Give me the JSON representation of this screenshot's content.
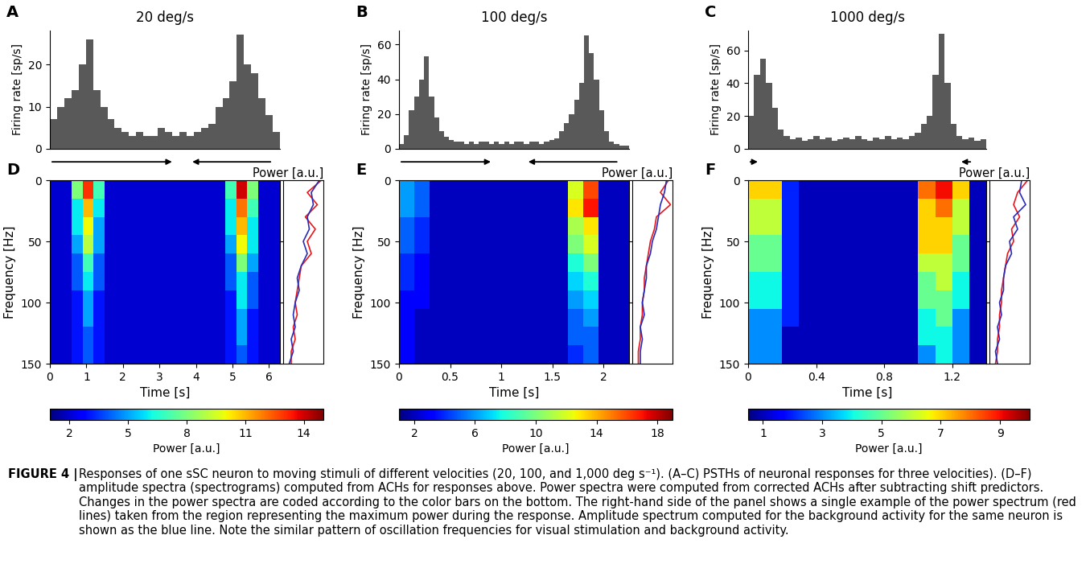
{
  "chart_data": [
    {
      "type": "histogram",
      "panel": "A",
      "title": "20 deg/s",
      "y_label": "Firing rate [sp/s]",
      "bins": [
        0,
        0.2,
        0.4,
        0.6,
        0.8,
        1,
        1.2,
        1.4,
        1.6,
        1.8,
        2,
        2.2,
        2.4,
        2.6,
        2.8,
        3,
        3.2,
        3.4,
        3.6,
        3.8,
        4,
        4.2,
        4.4,
        4.6,
        4.8,
        5,
        5.2,
        5.4,
        5.6,
        5.8,
        6,
        6.2,
        6.4
      ],
      "values": [
        7,
        10,
        12,
        14,
        20,
        26,
        14,
        10,
        7,
        5,
        4,
        3,
        4,
        3,
        3,
        5,
        4,
        3,
        4,
        3,
        4,
        5,
        6,
        10,
        12,
        16,
        27,
        20,
        18,
        12,
        8,
        4
      ],
      "color": "#595959",
      "xlim": [
        0,
        6.4
      ],
      "xticks": [],
      "ylim": [
        0,
        28
      ],
      "yticks": [
        0,
        10,
        20
      ],
      "tick_labels": "y",
      "stimulus_arrows": [
        {
          "start": 0,
          "end": 3.46
        },
        {
          "start": 6.2,
          "end": 3.9
        }
      ]
    },
    {
      "type": "histogram",
      "panel": "B",
      "title": "100 deg/s",
      "y_label": "Firing rate [sp/s]",
      "bins": [
        0,
        0.05,
        0.1,
        0.15,
        0.2,
        0.25,
        0.3,
        0.35,
        0.4,
        0.45,
        0.5,
        0.55,
        0.6,
        0.65,
        0.7,
        0.75,
        0.8,
        0.85,
        0.9,
        0.95,
        1,
        1.05,
        1.1,
        1.15,
        1.2,
        1.25,
        1.3,
        1.35,
        1.4,
        1.45,
        1.5,
        1.55,
        1.6,
        1.65,
        1.7,
        1.75,
        1.8,
        1.85,
        1.9,
        1.95,
        2,
        2.05,
        2.1,
        2.15,
        2.2,
        2.25,
        2.3
      ],
      "values": [
        3,
        8,
        22,
        30,
        40,
        53,
        30,
        18,
        10,
        7,
        5,
        4,
        4,
        3,
        4,
        3,
        4,
        4,
        3,
        4,
        3,
        4,
        3,
        4,
        4,
        3,
        4,
        4,
        3,
        4,
        5,
        6,
        10,
        15,
        20,
        28,
        38,
        65,
        55,
        40,
        22,
        10,
        4,
        3,
        2,
        2
      ],
      "color": "#595959",
      "xlim": [
        0,
        2.3
      ],
      "xticks": [],
      "ylim": [
        0,
        68
      ],
      "yticks": [
        0,
        20,
        40,
        60
      ],
      "tick_labels": "y",
      "stimulus_arrows": [
        {
          "start": 0,
          "end": 0.94
        },
        {
          "start": 2.2,
          "end": 1.27
        }
      ]
    },
    {
      "type": "histogram",
      "panel": "C",
      "title": "1000 deg/s",
      "y_label": "Firing rate [sp/s]",
      "bins": [
        0,
        0.035,
        0.07,
        0.105,
        0.14,
        0.175,
        0.21,
        0.245,
        0.28,
        0.315,
        0.35,
        0.385,
        0.42,
        0.455,
        0.49,
        0.525,
        0.56,
        0.595,
        0.63,
        0.665,
        0.7,
        0.735,
        0.77,
        0.805,
        0.84,
        0.875,
        0.91,
        0.945,
        0.98,
        1.015,
        1.05,
        1.085,
        1.12,
        1.155,
        1.19,
        1.225,
        1.26,
        1.295,
        1.33,
        1.365,
        1.4
      ],
      "values": [
        20,
        45,
        55,
        40,
        25,
        12,
        8,
        6,
        7,
        5,
        6,
        8,
        6,
        7,
        5,
        6,
        7,
        6,
        8,
        6,
        5,
        7,
        6,
        8,
        6,
        7,
        6,
        8,
        10,
        15,
        20,
        45,
        70,
        40,
        15,
        8,
        6,
        7,
        5,
        6
      ],
      "color": "#595959",
      "xlim": [
        0,
        1.4
      ],
      "xticks": [],
      "ylim": [
        0,
        72
      ],
      "yticks": [
        0,
        20,
        40,
        60
      ],
      "tick_labels": "y",
      "stimulus_arrows": [
        {
          "start": 0,
          "end": 0.07
        },
        {
          "start": 1.32,
          "end": 1.24
        }
      ]
    },
    {
      "type": "heatmap",
      "panel": "D",
      "x_label": "Time [s]",
      "y_label": "Frequency [Hz]",
      "time_edges": [
        0,
        0.3,
        0.6,
        0.9,
        1.2,
        1.5,
        1.8,
        2.1,
        2.4,
        2.7,
        3,
        3.3,
        3.6,
        3.9,
        4.2,
        4.5,
        4.8,
        5.1,
        5.4,
        5.7,
        6,
        6.3
      ],
      "freq_edges": [
        0,
        15,
        30,
        45,
        60,
        75,
        90,
        105,
        120,
        135,
        150
      ],
      "power": [
        [
          2,
          2,
          8,
          13,
          7,
          2,
          2,
          2,
          2,
          2,
          2,
          2,
          2,
          2,
          2,
          2,
          7,
          14,
          8,
          2,
          2
        ],
        [
          2,
          2,
          6,
          11,
          6,
          2,
          2,
          2,
          2,
          2,
          2,
          2,
          2,
          2,
          2,
          2,
          6,
          12,
          7,
          2,
          2
        ],
        [
          2,
          2,
          6,
          10,
          5,
          2,
          2,
          2,
          2,
          2,
          2,
          2,
          2,
          2,
          2,
          2,
          6,
          11,
          6,
          2,
          2
        ],
        [
          2,
          2,
          5,
          9,
          5,
          2,
          2,
          2,
          2,
          2,
          2,
          2,
          2,
          2,
          2,
          2,
          5,
          10,
          6,
          2,
          2
        ],
        [
          2,
          2,
          4,
          7,
          4,
          2,
          2,
          2,
          2,
          2,
          2,
          2,
          2,
          2,
          2,
          2,
          4,
          8,
          5,
          2,
          2
        ],
        [
          2,
          2,
          4,
          6,
          4,
          2,
          2,
          2,
          2,
          2,
          2,
          2,
          2,
          2,
          2,
          2,
          4,
          6,
          4,
          2,
          2
        ],
        [
          2,
          2,
          3,
          5,
          3,
          2,
          2,
          2,
          2,
          2,
          2,
          2,
          2,
          2,
          2,
          2,
          3,
          6,
          4,
          2,
          2
        ],
        [
          2,
          2,
          3,
          5,
          3,
          2,
          2,
          2,
          2,
          2,
          2,
          2,
          2,
          2,
          2,
          2,
          3,
          5,
          3,
          2,
          2
        ],
        [
          2,
          2,
          3,
          4,
          3,
          2,
          2,
          2,
          2,
          2,
          2,
          2,
          2,
          2,
          2,
          2,
          3,
          5,
          3,
          2,
          2
        ],
        [
          2,
          2,
          3,
          4,
          3,
          2,
          2,
          2,
          2,
          2,
          2,
          2,
          2,
          2,
          2,
          2,
          3,
          4,
          3,
          2,
          2
        ]
      ],
      "xlim": [
        0,
        6.3
      ],
      "xticks": [
        0,
        1,
        2,
        3,
        4,
        5,
        6
      ],
      "ylim": [
        150,
        0
      ],
      "yticks": [
        0,
        50,
        100,
        150
      ],
      "color_range": [
        1,
        15
      ],
      "colorbar_ticks": [
        2,
        5,
        8,
        11,
        14
      ],
      "colorbar_label": "Power [a.u.]"
    },
    {
      "type": "heatmap",
      "panel": "E",
      "x_label": "Time [s]",
      "y_label": "Frequency [Hz]",
      "time_edges": [
        0,
        0.15,
        0.3,
        0.45,
        0.6,
        0.75,
        0.9,
        1.05,
        1.2,
        1.35,
        1.5,
        1.65,
        1.8,
        1.95,
        2.1,
        2.25
      ],
      "freq_edges": [
        0,
        15,
        30,
        45,
        60,
        75,
        90,
        105,
        120,
        135,
        150
      ],
      "power": [
        [
          6,
          5,
          2,
          2,
          2,
          2,
          2,
          2,
          2,
          2,
          2,
          12,
          16,
          2,
          2
        ],
        [
          6,
          5,
          2,
          2,
          2,
          2,
          2,
          2,
          2,
          2,
          2,
          13,
          17,
          2,
          2
        ],
        [
          5,
          4,
          2,
          2,
          2,
          2,
          2,
          2,
          2,
          2,
          2,
          11,
          13,
          2,
          2
        ],
        [
          5,
          4,
          2,
          2,
          2,
          2,
          2,
          2,
          2,
          2,
          2,
          10,
          12,
          2,
          2
        ],
        [
          4,
          3,
          2,
          2,
          2,
          2,
          2,
          2,
          2,
          2,
          2,
          8,
          10,
          2,
          2
        ],
        [
          4,
          3,
          2,
          2,
          2,
          2,
          2,
          2,
          2,
          2,
          2,
          7,
          8,
          2,
          2
        ],
        [
          3,
          3,
          2,
          2,
          2,
          2,
          2,
          2,
          2,
          2,
          2,
          6,
          7,
          2,
          2
        ],
        [
          3,
          2,
          2,
          2,
          2,
          2,
          2,
          2,
          2,
          2,
          2,
          5,
          6,
          2,
          2
        ],
        [
          3,
          2,
          2,
          2,
          2,
          2,
          2,
          2,
          2,
          2,
          2,
          5,
          5,
          2,
          2
        ],
        [
          3,
          2,
          2,
          2,
          2,
          2,
          2,
          2,
          2,
          2,
          2,
          4,
          5,
          2,
          2
        ]
      ],
      "xlim": [
        0,
        2.25
      ],
      "xticks": [
        0,
        0.5,
        1,
        1.5,
        2
      ],
      "ylim": [
        150,
        0
      ],
      "yticks": [
        0,
        50,
        100,
        150
      ],
      "color_range": [
        1,
        19
      ],
      "colorbar_ticks": [
        2,
        6,
        10,
        14,
        18
      ],
      "colorbar_label": "Power [a.u.]"
    },
    {
      "type": "heatmap",
      "panel": "F",
      "x_label": "Time [s]",
      "y_label": "Frequency [Hz]",
      "time_edges": [
        0,
        0.1,
        0.2,
        0.3,
        0.4,
        0.5,
        0.6,
        0.7,
        0.8,
        0.9,
        1,
        1.1,
        1.2,
        1.3,
        1.4
      ],
      "freq_edges": [
        0,
        15,
        30,
        45,
        60,
        75,
        90,
        105,
        120,
        135,
        150
      ],
      "power": [
        [
          7,
          7,
          2,
          1,
          1,
          1,
          1,
          1,
          1,
          1,
          8,
          9,
          7,
          1
        ],
        [
          6,
          6,
          2,
          1,
          1,
          1,
          1,
          1,
          1,
          1,
          7,
          8,
          6,
          1
        ],
        [
          6,
          6,
          2,
          1,
          1,
          1,
          1,
          1,
          1,
          1,
          7,
          7,
          6,
          1
        ],
        [
          5,
          5,
          2,
          1,
          1,
          1,
          1,
          1,
          1,
          1,
          7,
          7,
          5,
          1
        ],
        [
          5,
          5,
          2,
          1,
          1,
          1,
          1,
          1,
          1,
          1,
          6,
          6,
          5,
          1
        ],
        [
          4,
          4,
          2,
          1,
          1,
          1,
          1,
          1,
          1,
          1,
          5,
          6,
          4,
          1
        ],
        [
          4,
          4,
          2,
          1,
          1,
          1,
          1,
          1,
          1,
          1,
          5,
          5,
          4,
          1
        ],
        [
          3,
          3,
          2,
          1,
          1,
          1,
          1,
          1,
          1,
          1,
          4,
          5,
          3,
          1
        ],
        [
          3,
          3,
          1,
          1,
          1,
          1,
          1,
          1,
          1,
          1,
          4,
          4,
          3,
          1
        ],
        [
          3,
          3,
          1,
          1,
          1,
          1,
          1,
          1,
          1,
          1,
          3,
          4,
          3,
          1
        ]
      ],
      "xlim": [
        0,
        1.4
      ],
      "xticks": [
        0,
        0.4,
        0.8,
        1.2
      ],
      "ylim": [
        150,
        0
      ],
      "yticks": [
        0,
        50,
        100,
        150
      ],
      "color_range": [
        0.5,
        10
      ],
      "colorbar_ticks": [
        1,
        3,
        5,
        7,
        9
      ],
      "colorbar_label": "Power [a.u.]"
    },
    {
      "type": "line",
      "title": "Power [a.u.]",
      "frequencies": [
        0,
        10,
        20,
        30,
        40,
        50,
        60,
        70,
        80,
        90,
        100,
        110,
        120,
        130,
        140,
        150
      ],
      "series": [
        {
          "color": "#e8161b",
          "values": [
            0.95,
            0.6,
            0.85,
            0.55,
            0.8,
            0.6,
            0.7,
            0.45,
            0.4,
            0.35,
            0.3,
            0.35,
            0.25,
            0.3,
            0.2,
            0.2
          ]
        },
        {
          "color": "#2a2ab8",
          "values": [
            0.9,
            0.7,
            0.75,
            0.6,
            0.65,
            0.5,
            0.6,
            0.45,
            0.35,
            0.4,
            0.3,
            0.25,
            0.3,
            0.2,
            0.25,
            0.15
          ]
        }
      ],
      "xlim": [
        0,
        1
      ],
      "xticks": [],
      "ylim": [
        150,
        0
      ],
      "yticks": [
        0,
        50,
        100,
        150
      ],
      "tick_labels": false
    },
    {
      "type": "line",
      "title": "Power [a.u.]",
      "frequencies": [
        0,
        10,
        20,
        30,
        40,
        50,
        60,
        70,
        80,
        90,
        100,
        110,
        120,
        130,
        140,
        150
      ],
      "series": [
        {
          "color": "#e8161b",
          "values": [
            0.9,
            0.7,
            0.95,
            0.6,
            0.55,
            0.45,
            0.4,
            0.35,
            0.3,
            0.3,
            0.25,
            0.25,
            0.2,
            0.2,
            0.15,
            0.15
          ]
        },
        {
          "color": "#2a2ab8",
          "values": [
            0.85,
            0.8,
            0.7,
            0.65,
            0.6,
            0.5,
            0.45,
            0.35,
            0.35,
            0.3,
            0.25,
            0.3,
            0.2,
            0.25,
            0.2,
            0.2
          ]
        }
      ],
      "xlim": [
        0,
        1
      ],
      "xticks": [],
      "ylim": [
        150,
        0
      ],
      "yticks": [
        0,
        50,
        100,
        150
      ],
      "tick_labels": false
    },
    {
      "type": "line",
      "title": "Power [a.u.]",
      "frequencies": [
        0,
        10,
        20,
        30,
        40,
        50,
        60,
        70,
        80,
        90,
        100,
        110,
        120,
        130,
        140,
        150
      ],
      "series": [
        {
          "color": "#e8161b",
          "values": [
            0.95,
            0.7,
            0.6,
            0.75,
            0.55,
            0.6,
            0.45,
            0.4,
            0.35,
            0.3,
            0.3,
            0.25,
            0.25,
            0.2,
            0.2,
            0.15
          ]
        },
        {
          "color": "#2a2ab8",
          "values": [
            0.8,
            0.75,
            0.9,
            0.6,
            0.7,
            0.5,
            0.55,
            0.4,
            0.35,
            0.35,
            0.25,
            0.3,
            0.2,
            0.25,
            0.15,
            0.2
          ]
        }
      ],
      "xlim": [
        0,
        1
      ],
      "xticks": [],
      "ylim": [
        150,
        0
      ],
      "yticks": [
        0,
        50,
        100,
        150
      ],
      "tick_labels": false
    }
  ],
  "figure": {
    "caption_label": "FIGURE 4 |",
    "caption": "Responses of one sSC neuron to moving stimuli of different velocities (20, 100, and 1,000 deg s⁻¹). (A–C) PSTHs of neuronal responses for three velocities). (D–F) amplitude spectra (spectrograms) computed from ACHs for responses above. Power spectra were computed from corrected ACHs after subtracting shift predictors. Changes in the power spectra are coded according to the color bars on the bottom. The right-hand side of the panel shows a single example of the power spectrum (red lines) taken from the region representing the maximum power during the response. Amplitude spectrum computed for the background activity for the same neuron is shown as the blue line. Note the similar pattern of oscillation frequencies for visual stimulation and background activity."
  }
}
